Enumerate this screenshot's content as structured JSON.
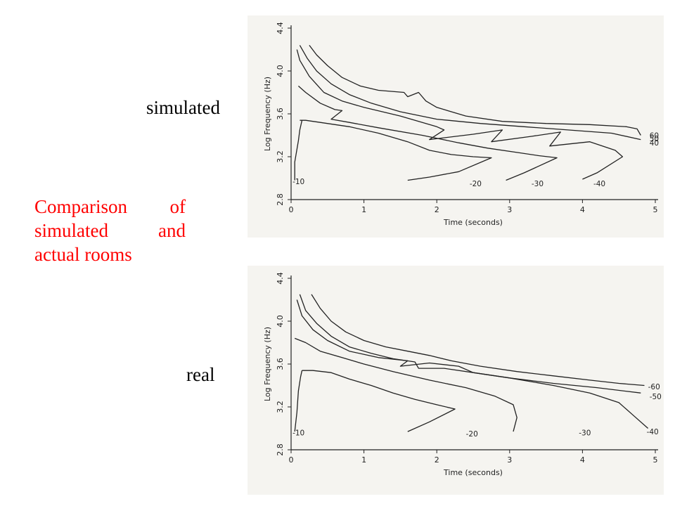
{
  "labels": {
    "simulated": "simulated",
    "real": "real",
    "caption": [
      "Comparison of",
      "simulated and",
      "actual rooms"
    ]
  },
  "colors": {
    "caption": "#ff0000",
    "panel_bg": "#f5f4f0",
    "ink": "#222222"
  },
  "chart_data": [
    {
      "type": "line",
      "id": "sim",
      "title": "",
      "xlabel": "Time (seconds)",
      "ylabel": "Log Frequency (Hz)",
      "xlim": [
        0,
        5
      ],
      "ylim": [
        2.8,
        4.4
      ],
      "xticks": [
        "0",
        "1",
        "2",
        "3",
        "4",
        "5"
      ],
      "yticks": [
        "2.8",
        "3.2",
        "3.6",
        "4.0",
        "4.4"
      ],
      "grid": false,
      "series": [
        {
          "name": "-10",
          "x": [
            0.05,
            0.05,
            0.1,
            0.12,
            0.15
          ],
          "y": [
            2.98,
            3.15,
            3.35,
            3.45,
            3.54
          ]
        },
        {
          "name": "-20",
          "x": [
            0.12,
            0.2,
            0.4,
            0.8,
            1.2,
            1.6,
            1.9,
            2.2,
            2.5,
            2.75,
            2.3,
            1.9,
            1.6
          ],
          "y": [
            3.54,
            3.54,
            3.52,
            3.48,
            3.42,
            3.34,
            3.26,
            3.22,
            3.2,
            3.19,
            3.06,
            3.01,
            2.98
          ]
        },
        {
          "name": "-30",
          "x": [
            0.1,
            0.2,
            0.4,
            0.6,
            0.7,
            0.55,
            0.8,
            1.2,
            1.8,
            2.3,
            2.7,
            3.1,
            3.4,
            3.65,
            3.2,
            2.95
          ],
          "y": [
            3.86,
            3.8,
            3.7,
            3.64,
            3.63,
            3.55,
            3.52,
            3.47,
            3.4,
            3.33,
            3.28,
            3.24,
            3.21,
            3.19,
            3.05,
            2.98
          ]
        },
        {
          "name": "-40",
          "x": [
            0.08,
            0.12,
            0.25,
            0.45,
            0.7,
            1.0,
            1.5,
            2.0,
            2.1,
            1.9,
            2.5,
            2.9,
            2.75,
            3.3,
            3.7,
            3.55,
            4.1,
            4.45,
            4.55,
            4.2,
            4.0
          ],
          "y": [
            4.2,
            4.1,
            3.95,
            3.8,
            3.72,
            3.66,
            3.58,
            3.48,
            3.45,
            3.36,
            3.41,
            3.45,
            3.34,
            3.39,
            3.43,
            3.3,
            3.34,
            3.26,
            3.2,
            3.05,
            2.99
          ]
        },
        {
          "name": "-50",
          "x": [
            0.12,
            0.22,
            0.35,
            0.55,
            0.8,
            1.1,
            1.5,
            2.0,
            2.6,
            3.2,
            3.8,
            4.4,
            4.8
          ],
          "y": [
            4.24,
            4.12,
            4.0,
            3.88,
            3.78,
            3.7,
            3.62,
            3.55,
            3.51,
            3.48,
            3.45,
            3.42,
            3.36
          ]
        },
        {
          "name": "-60",
          "x": [
            0.25,
            0.35,
            0.5,
            0.7,
            0.95,
            1.2,
            1.55,
            1.6,
            1.75,
            1.85,
            2.0,
            2.4,
            2.9,
            3.5,
            4.1,
            4.6,
            4.75,
            4.8
          ],
          "y": [
            4.24,
            4.15,
            4.05,
            3.94,
            3.86,
            3.82,
            3.8,
            3.76,
            3.8,
            3.72,
            3.66,
            3.58,
            3.53,
            3.51,
            3.5,
            3.48,
            3.46,
            3.4
          ]
        }
      ],
      "contour_labels": [
        {
          "text": "-10",
          "x": 0.02,
          "y": 2.97
        },
        {
          "text": "-20",
          "x": 2.45,
          "y": 2.95
        },
        {
          "text": "-30",
          "x": 3.3,
          "y": 2.95
        },
        {
          "text": "-40",
          "x": 4.15,
          "y": 2.95
        },
        {
          "text": "60",
          "x": 4.92,
          "y": 3.4
        },
        {
          "text": "50",
          "x": 4.92,
          "y": 3.37
        },
        {
          "text": "40",
          "x": 4.92,
          "y": 3.33
        }
      ]
    },
    {
      "type": "line",
      "id": "real",
      "title": "",
      "xlabel": "Time (seconds)",
      "ylabel": "Log Frequency (Hz)",
      "xlim": [
        0,
        5
      ],
      "ylim": [
        2.8,
        4.4
      ],
      "xticks": [
        "0",
        "1",
        "2",
        "3",
        "4",
        "5"
      ],
      "yticks": [
        "2.8",
        "3.2",
        "3.6",
        "4.0",
        "4.4"
      ],
      "grid": false,
      "series": [
        {
          "name": "-10",
          "x": [
            0.05,
            0.08,
            0.1,
            0.13,
            0.15
          ],
          "y": [
            2.97,
            3.15,
            3.35,
            3.48,
            3.54
          ]
        },
        {
          "name": "-20",
          "x": [
            0.15,
            0.3,
            0.55,
            0.8,
            1.1,
            1.4,
            1.7,
            2.0,
            2.25,
            1.9,
            1.6
          ],
          "y": [
            3.54,
            3.54,
            3.52,
            3.46,
            3.4,
            3.33,
            3.27,
            3.22,
            3.18,
            3.06,
            2.97
          ]
        },
        {
          "name": "-30",
          "x": [
            0.05,
            0.2,
            0.4,
            0.7,
            1.0,
            1.4,
            1.9,
            2.4,
            2.8,
            3.05,
            3.1,
            3.05
          ],
          "y": [
            3.84,
            3.8,
            3.72,
            3.66,
            3.6,
            3.53,
            3.45,
            3.38,
            3.3,
            3.22,
            3.1,
            2.97
          ]
        },
        {
          "name": "-40",
          "x": [
            0.08,
            0.15,
            0.3,
            0.5,
            0.8,
            1.2,
            1.6,
            1.5,
            1.9,
            2.3,
            2.5,
            3.0,
            3.6,
            4.1,
            4.5,
            4.7,
            4.9
          ],
          "y": [
            4.2,
            4.05,
            3.92,
            3.82,
            3.72,
            3.66,
            3.63,
            3.58,
            3.61,
            3.58,
            3.52,
            3.47,
            3.4,
            3.33,
            3.24,
            3.12,
            3.0
          ]
        },
        {
          "name": "-50",
          "x": [
            0.12,
            0.2,
            0.35,
            0.55,
            0.8,
            1.1,
            1.4,
            1.7,
            1.75,
            2.1,
            2.5,
            3.0,
            3.6,
            4.2,
            4.8
          ],
          "y": [
            4.25,
            4.1,
            3.98,
            3.86,
            3.76,
            3.7,
            3.65,
            3.62,
            3.56,
            3.56,
            3.52,
            3.47,
            3.42,
            3.38,
            3.33
          ]
        },
        {
          "name": "-60",
          "x": [
            0.28,
            0.4,
            0.55,
            0.75,
            1.0,
            1.3,
            1.6,
            1.9,
            2.2,
            2.6,
            3.1,
            3.6,
            4.1,
            4.5,
            4.85
          ],
          "y": [
            4.25,
            4.12,
            4.0,
            3.9,
            3.82,
            3.76,
            3.72,
            3.68,
            3.63,
            3.58,
            3.53,
            3.49,
            3.45,
            3.42,
            3.4
          ]
        }
      ],
      "contour_labels": [
        {
          "text": "-10",
          "x": 0.02,
          "y": 2.96
        },
        {
          "text": "-20",
          "x": 2.4,
          "y": 2.95
        },
        {
          "text": "-30",
          "x": 3.95,
          "y": 2.96
        },
        {
          "text": "-40",
          "x": 4.88,
          "y": 2.97
        },
        {
          "text": "-60",
          "x": 4.9,
          "y": 3.39
        },
        {
          "text": "-50",
          "x": 4.92,
          "y": 3.3
        }
      ]
    }
  ]
}
